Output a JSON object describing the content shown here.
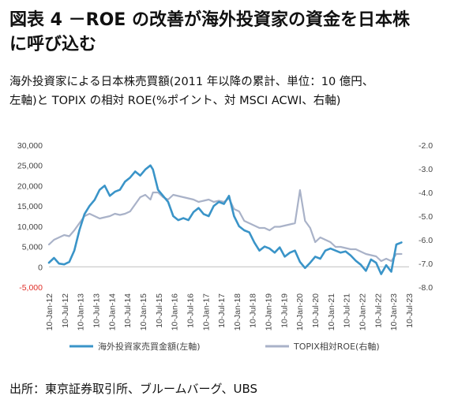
{
  "figure": {
    "title_line1": "図表 4 －ROE の改善が海外投資家の資金を日本株",
    "title_line2": "に呼び込む",
    "subtitle_line1": "海外投資家による日本株売買額(2011 年以降の累計、単位：10 億円、",
    "subtitle_line2": "左軸)と TOPIX の相対 ROE(%ポイント、対 MSCI ACWI、右軸)",
    "source": "出所：東京証券取引所、ブルームバーグ、UBS"
  },
  "colors": {
    "left_series": "#3a94c8",
    "right_series": "#a9b2c8",
    "negative_tick": "#e0302a"
  },
  "chart_data": {
    "type": "line",
    "x_tick_labels": [
      "10-Jan-12",
      "10-Jul-12",
      "10-Jan-13",
      "10-Jul-13",
      "10-Jan-14",
      "10-Jul-14",
      "10-Jan-15",
      "10-Jul-15",
      "10-Jan-16",
      "10-Jul-16",
      "10-Jan-17",
      "10-Jul-17",
      "10-Jan-18",
      "10-Jul-18",
      "10-Jan-19",
      "10-Jul-19",
      "10-Jan-20",
      "10-Jul-20",
      "10-Jan-21",
      "10-Jul-21",
      "10-Jan-22",
      "10-Jul-22",
      "10-Jan-23",
      "10-Jul-23"
    ],
    "y_left": {
      "range": [
        -5000,
        30000
      ],
      "ticks": [
        30000,
        25000,
        20000,
        15000,
        10000,
        5000,
        0,
        -5000
      ],
      "tick_labels": [
        "30,000",
        "25,000",
        "20,000",
        "15,000",
        "10,000",
        "5,000",
        "0",
        "-5,000"
      ]
    },
    "y_right": {
      "range": [
        -8.0,
        -2.0
      ],
      "ticks": [
        -2.0,
        -3.0,
        -4.0,
        -5.0,
        -6.0,
        -7.0,
        -8.0
      ],
      "tick_labels": [
        "-2.0",
        "-3.0",
        "-4.0",
        "-5.0",
        "-6.0",
        "-7.0",
        "-8.0"
      ]
    },
    "legend_position": "bottom",
    "grid": false,
    "series": [
      {
        "name": "海外投資家売買金額(左軸)",
        "axis": "left",
        "x": [
          "2012-01",
          "2012-03",
          "2012-05",
          "2012-07",
          "2012-09",
          "2012-11",
          "2013-01",
          "2013-03",
          "2013-05",
          "2013-07",
          "2013-09",
          "2013-11",
          "2014-01",
          "2014-03",
          "2014-05",
          "2014-07",
          "2014-09",
          "2014-11",
          "2015-01",
          "2015-03",
          "2015-05",
          "2015-06",
          "2015-08",
          "2015-10",
          "2015-12",
          "2016-02",
          "2016-04",
          "2016-06",
          "2016-08",
          "2016-10",
          "2016-12",
          "2017-02",
          "2017-04",
          "2017-06",
          "2017-08",
          "2017-10",
          "2017-12",
          "2018-02",
          "2018-04",
          "2018-06",
          "2018-08",
          "2018-10",
          "2018-12",
          "2019-02",
          "2019-04",
          "2019-06",
          "2019-08",
          "2019-10",
          "2019-12",
          "2020-02",
          "2020-04",
          "2020-06",
          "2020-08",
          "2020-10",
          "2020-12",
          "2021-02",
          "2021-04",
          "2021-06",
          "2021-08",
          "2021-10",
          "2021-12",
          "2022-02",
          "2022-04",
          "2022-06",
          "2022-08",
          "2022-10",
          "2022-12",
          "2023-02",
          "2023-04",
          "2023-06",
          "2023-08"
        ],
        "values": [
          1000,
          2200,
          800,
          600,
          1200,
          4000,
          9000,
          13000,
          15000,
          16500,
          19000,
          20000,
          17500,
          18500,
          19000,
          21000,
          22000,
          23500,
          22500,
          24000,
          25000,
          24000,
          19000,
          17500,
          16000,
          12500,
          11500,
          12000,
          11500,
          13500,
          14500,
          13000,
          12500,
          15000,
          16000,
          15500,
          17500,
          12500,
          10000,
          9000,
          8500,
          6000,
          4000,
          5000,
          4500,
          3500,
          4800,
          2500,
          3500,
          4000,
          1200,
          -300,
          1000,
          2500,
          2000,
          4000,
          4500,
          4000,
          3500,
          3800,
          2800,
          1500,
          500,
          -1000,
          1800,
          1000,
          -1800,
          400,
          -1200,
          5500,
          6000
        ]
      },
      {
        "name": "TOPIX相対ROE(右軸)",
        "axis": "right",
        "x": [
          "2012-01",
          "2012-03",
          "2012-05",
          "2012-07",
          "2012-09",
          "2012-11",
          "2013-01",
          "2013-03",
          "2013-05",
          "2013-07",
          "2013-09",
          "2013-11",
          "2014-01",
          "2014-03",
          "2014-05",
          "2014-07",
          "2014-09",
          "2014-11",
          "2015-01",
          "2015-03",
          "2015-05",
          "2015-06",
          "2015-08",
          "2015-10",
          "2015-12",
          "2016-02",
          "2016-04",
          "2016-06",
          "2016-08",
          "2016-10",
          "2016-12",
          "2017-02",
          "2017-04",
          "2017-06",
          "2017-08",
          "2017-10",
          "2017-12",
          "2018-02",
          "2018-04",
          "2018-06",
          "2018-08",
          "2018-10",
          "2018-12",
          "2019-02",
          "2019-04",
          "2019-06",
          "2019-08",
          "2019-10",
          "2019-12",
          "2020-02",
          "2020-04",
          "2020-06",
          "2020-08",
          "2020-10",
          "2020-12",
          "2021-02",
          "2021-04",
          "2021-06",
          "2021-08",
          "2021-10",
          "2021-12",
          "2022-02",
          "2022-04",
          "2022-06",
          "2022-08",
          "2022-10",
          "2022-12",
          "2023-02",
          "2023-04",
          "2023-06",
          "2023-08"
        ],
        "values": [
          -6.2,
          -6.0,
          -5.9,
          -5.8,
          -5.85,
          -5.6,
          -5.3,
          -5.0,
          -4.9,
          -5.0,
          -5.1,
          -5.05,
          -5.0,
          -4.9,
          -4.95,
          -4.9,
          -4.8,
          -4.5,
          -4.2,
          -4.1,
          -4.3,
          -4.0,
          -4.0,
          -4.2,
          -4.3,
          -4.1,
          -4.15,
          -4.2,
          -4.25,
          -4.3,
          -4.4,
          -4.35,
          -4.3,
          -4.4,
          -4.35,
          -4.4,
          -4.25,
          -4.7,
          -4.8,
          -5.2,
          -5.3,
          -5.4,
          -5.5,
          -5.5,
          -5.6,
          -5.45,
          -5.45,
          -5.4,
          -5.35,
          -5.3,
          -3.9,
          -5.2,
          -5.5,
          -6.1,
          -5.9,
          -6.0,
          -6.1,
          -6.3,
          -6.3,
          -6.35,
          -6.4,
          -6.4,
          -6.5,
          -6.6,
          -6.65,
          -6.7,
          -6.9,
          -6.8,
          -6.9,
          -6.6,
          -6.6
        ]
      }
    ]
  }
}
